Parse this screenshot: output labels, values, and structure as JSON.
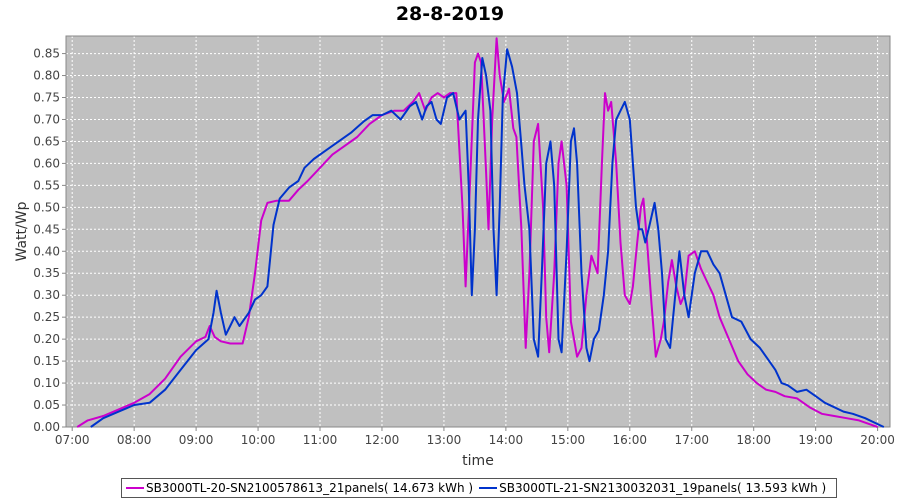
{
  "chart_data": {
    "type": "line",
    "title": "28-8-2019",
    "xlabel": "time",
    "ylabel": "Watt/Wp",
    "xlim": [
      6.9,
      20.2
    ],
    "ylim": [
      0,
      0.89
    ],
    "background": "#c0c0c0",
    "grid": true,
    "legend_position": "bottom",
    "x_ticks": [
      {
        "v": 7,
        "label": "07:00"
      },
      {
        "v": 8,
        "label": "08:00"
      },
      {
        "v": 9,
        "label": "09:00"
      },
      {
        "v": 10,
        "label": "10:00"
      },
      {
        "v": 11,
        "label": "11:00"
      },
      {
        "v": 12,
        "label": "12:00"
      },
      {
        "v": 13,
        "label": "13:00"
      },
      {
        "v": 14,
        "label": "14:00"
      },
      {
        "v": 15,
        "label": "15:00"
      },
      {
        "v": 16,
        "label": "16:00"
      },
      {
        "v": 17,
        "label": "17:00"
      },
      {
        "v": 18,
        "label": "18:00"
      },
      {
        "v": 19,
        "label": "19:00"
      },
      {
        "v": 20,
        "label": "20:00"
      }
    ],
    "y_ticks": [
      {
        "v": 0.0,
        "label": "0.00"
      },
      {
        "v": 0.05,
        "label": "0.05"
      },
      {
        "v": 0.1,
        "label": "0.10"
      },
      {
        "v": 0.15,
        "label": "0.15"
      },
      {
        "v": 0.2,
        "label": "0.20"
      },
      {
        "v": 0.25,
        "label": "0.25"
      },
      {
        "v": 0.3,
        "label": "0.30"
      },
      {
        "v": 0.35,
        "label": "0.35"
      },
      {
        "v": 0.4,
        "label": "0.40"
      },
      {
        "v": 0.45,
        "label": "0.45"
      },
      {
        "v": 0.5,
        "label": "0.50"
      },
      {
        "v": 0.55,
        "label": "0.55"
      },
      {
        "v": 0.6,
        "label": "0.60"
      },
      {
        "v": 0.65,
        "label": "0.65"
      },
      {
        "v": 0.7,
        "label": "0.70"
      },
      {
        "v": 0.75,
        "label": "0.75"
      },
      {
        "v": 0.8,
        "label": "0.80"
      },
      {
        "v": 0.85,
        "label": "0.85"
      }
    ],
    "series": [
      {
        "name": "SB3000TL-20-SN2100578613_21panels( 14.673 kWh )",
        "color": "#cc00cc",
        "points": [
          [
            7.08,
            0.0
          ],
          [
            7.25,
            0.015
          ],
          [
            7.5,
            0.025
          ],
          [
            7.75,
            0.04
          ],
          [
            8.0,
            0.055
          ],
          [
            8.25,
            0.075
          ],
          [
            8.5,
            0.11
          ],
          [
            8.75,
            0.16
          ],
          [
            9.0,
            0.195
          ],
          [
            9.15,
            0.205
          ],
          [
            9.22,
            0.23
          ],
          [
            9.3,
            0.205
          ],
          [
            9.4,
            0.195
          ],
          [
            9.55,
            0.19
          ],
          [
            9.75,
            0.19
          ],
          [
            9.85,
            0.25
          ],
          [
            9.95,
            0.35
          ],
          [
            10.05,
            0.47
          ],
          [
            10.15,
            0.51
          ],
          [
            10.3,
            0.515
          ],
          [
            10.5,
            0.515
          ],
          [
            10.65,
            0.54
          ],
          [
            10.8,
            0.56
          ],
          [
            11.0,
            0.59
          ],
          [
            11.2,
            0.62
          ],
          [
            11.4,
            0.64
          ],
          [
            11.6,
            0.66
          ],
          [
            11.8,
            0.69
          ],
          [
            12.0,
            0.71
          ],
          [
            12.2,
            0.72
          ],
          [
            12.35,
            0.72
          ],
          [
            12.5,
            0.74
          ],
          [
            12.6,
            0.76
          ],
          [
            12.7,
            0.72
          ],
          [
            12.8,
            0.75
          ],
          [
            12.9,
            0.76
          ],
          [
            13.0,
            0.75
          ],
          [
            13.1,
            0.76
          ],
          [
            13.2,
            0.76
          ],
          [
            13.3,
            0.5
          ],
          [
            13.35,
            0.32
          ],
          [
            13.42,
            0.55
          ],
          [
            13.5,
            0.83
          ],
          [
            13.55,
            0.85
          ],
          [
            13.6,
            0.83
          ],
          [
            13.68,
            0.58
          ],
          [
            13.72,
            0.45
          ],
          [
            13.78,
            0.7
          ],
          [
            13.85,
            0.885
          ],
          [
            13.9,
            0.8
          ],
          [
            13.97,
            0.74
          ],
          [
            14.05,
            0.77
          ],
          [
            14.12,
            0.68
          ],
          [
            14.17,
            0.66
          ],
          [
            14.25,
            0.45
          ],
          [
            14.32,
            0.18
          ],
          [
            14.38,
            0.35
          ],
          [
            14.45,
            0.65
          ],
          [
            14.52,
            0.69
          ],
          [
            14.6,
            0.5
          ],
          [
            14.65,
            0.25
          ],
          [
            14.7,
            0.17
          ],
          [
            14.78,
            0.35
          ],
          [
            14.85,
            0.6
          ],
          [
            14.9,
            0.65
          ],
          [
            14.98,
            0.55
          ],
          [
            15.05,
            0.24
          ],
          [
            15.15,
            0.16
          ],
          [
            15.22,
            0.18
          ],
          [
            15.3,
            0.3
          ],
          [
            15.38,
            0.39
          ],
          [
            15.48,
            0.35
          ],
          [
            15.55,
            0.6
          ],
          [
            15.6,
            0.76
          ],
          [
            15.65,
            0.72
          ],
          [
            15.7,
            0.74
          ],
          [
            15.78,
            0.6
          ],
          [
            15.85,
            0.42
          ],
          [
            15.92,
            0.3
          ],
          [
            16.0,
            0.28
          ],
          [
            16.05,
            0.32
          ],
          [
            16.12,
            0.42
          ],
          [
            16.18,
            0.5
          ],
          [
            16.22,
            0.52
          ],
          [
            16.28,
            0.42
          ],
          [
            16.35,
            0.28
          ],
          [
            16.42,
            0.16
          ],
          [
            16.5,
            0.2
          ],
          [
            16.55,
            0.24
          ],
          [
            16.62,
            0.33
          ],
          [
            16.68,
            0.38
          ],
          [
            16.75,
            0.32
          ],
          [
            16.82,
            0.28
          ],
          [
            16.88,
            0.3
          ],
          [
            16.95,
            0.39
          ],
          [
            17.05,
            0.4
          ],
          [
            17.15,
            0.36
          ],
          [
            17.25,
            0.33
          ],
          [
            17.35,
            0.3
          ],
          [
            17.45,
            0.25
          ],
          [
            17.6,
            0.2
          ],
          [
            17.75,
            0.15
          ],
          [
            17.9,
            0.12
          ],
          [
            18.05,
            0.1
          ],
          [
            18.2,
            0.085
          ],
          [
            18.35,
            0.08
          ],
          [
            18.5,
            0.07
          ],
          [
            18.7,
            0.065
          ],
          [
            18.9,
            0.045
          ],
          [
            19.1,
            0.03
          ],
          [
            19.3,
            0.025
          ],
          [
            19.5,
            0.02
          ],
          [
            19.7,
            0.015
          ],
          [
            19.9,
            0.005
          ],
          [
            20.0,
            0.0
          ]
        ]
      },
      {
        "name": "SB3000TL-21-SN2130032031_19panels( 13.593 kWh )",
        "color": "#0033cc",
        "points": [
          [
            7.3,
            0.0
          ],
          [
            7.5,
            0.02
          ],
          [
            7.75,
            0.035
          ],
          [
            8.0,
            0.05
          ],
          [
            8.25,
            0.055
          ],
          [
            8.5,
            0.085
          ],
          [
            8.75,
            0.13
          ],
          [
            9.0,
            0.175
          ],
          [
            9.2,
            0.2
          ],
          [
            9.28,
            0.26
          ],
          [
            9.33,
            0.31
          ],
          [
            9.4,
            0.26
          ],
          [
            9.48,
            0.21
          ],
          [
            9.55,
            0.23
          ],
          [
            9.62,
            0.25
          ],
          [
            9.7,
            0.23
          ],
          [
            9.85,
            0.26
          ],
          [
            9.95,
            0.29
          ],
          [
            10.05,
            0.3
          ],
          [
            10.15,
            0.32
          ],
          [
            10.25,
            0.46
          ],
          [
            10.35,
            0.52
          ],
          [
            10.5,
            0.545
          ],
          [
            10.65,
            0.56
          ],
          [
            10.75,
            0.59
          ],
          [
            10.9,
            0.61
          ],
          [
            11.1,
            0.63
          ],
          [
            11.3,
            0.65
          ],
          [
            11.5,
            0.67
          ],
          [
            11.7,
            0.695
          ],
          [
            11.85,
            0.71
          ],
          [
            12.0,
            0.71
          ],
          [
            12.15,
            0.72
          ],
          [
            12.3,
            0.7
          ],
          [
            12.45,
            0.73
          ],
          [
            12.55,
            0.74
          ],
          [
            12.65,
            0.7
          ],
          [
            12.72,
            0.73
          ],
          [
            12.8,
            0.74
          ],
          [
            12.88,
            0.7
          ],
          [
            12.95,
            0.69
          ],
          [
            13.05,
            0.75
          ],
          [
            13.15,
            0.76
          ],
          [
            13.25,
            0.7
          ],
          [
            13.35,
            0.72
          ],
          [
            13.4,
            0.55
          ],
          [
            13.45,
            0.3
          ],
          [
            13.5,
            0.45
          ],
          [
            13.55,
            0.7
          ],
          [
            13.62,
            0.84
          ],
          [
            13.68,
            0.8
          ],
          [
            13.75,
            0.72
          ],
          [
            13.8,
            0.45
          ],
          [
            13.85,
            0.3
          ],
          [
            13.9,
            0.5
          ],
          [
            13.95,
            0.75
          ],
          [
            14.02,
            0.86
          ],
          [
            14.1,
            0.82
          ],
          [
            14.18,
            0.76
          ],
          [
            14.25,
            0.64
          ],
          [
            14.3,
            0.55
          ],
          [
            14.38,
            0.45
          ],
          [
            14.45,
            0.2
          ],
          [
            14.52,
            0.16
          ],
          [
            14.58,
            0.35
          ],
          [
            14.65,
            0.6
          ],
          [
            14.72,
            0.65
          ],
          [
            14.78,
            0.55
          ],
          [
            14.85,
            0.2
          ],
          [
            14.9,
            0.17
          ],
          [
            14.98,
            0.4
          ],
          [
            15.05,
            0.65
          ],
          [
            15.1,
            0.68
          ],
          [
            15.15,
            0.6
          ],
          [
            15.22,
            0.35
          ],
          [
            15.3,
            0.18
          ],
          [
            15.35,
            0.15
          ],
          [
            15.42,
            0.2
          ],
          [
            15.5,
            0.22
          ],
          [
            15.58,
            0.3
          ],
          [
            15.65,
            0.4
          ],
          [
            15.72,
            0.6
          ],
          [
            15.78,
            0.7
          ],
          [
            15.85,
            0.72
          ],
          [
            15.92,
            0.74
          ],
          [
            16.0,
            0.7
          ],
          [
            16.05,
            0.6
          ],
          [
            16.1,
            0.5
          ],
          [
            16.15,
            0.45
          ],
          [
            16.2,
            0.45
          ],
          [
            16.25,
            0.42
          ],
          [
            16.32,
            0.46
          ],
          [
            16.4,
            0.51
          ],
          [
            16.46,
            0.45
          ],
          [
            16.52,
            0.35
          ],
          [
            16.58,
            0.2
          ],
          [
            16.65,
            0.18
          ],
          [
            16.72,
            0.28
          ],
          [
            16.8,
            0.4
          ],
          [
            16.88,
            0.3
          ],
          [
            16.95,
            0.25
          ],
          [
            17.05,
            0.35
          ],
          [
            17.15,
            0.4
          ],
          [
            17.25,
            0.4
          ],
          [
            17.35,
            0.37
          ],
          [
            17.45,
            0.35
          ],
          [
            17.55,
            0.3
          ],
          [
            17.65,
            0.25
          ],
          [
            17.8,
            0.24
          ],
          [
            17.95,
            0.2
          ],
          [
            18.1,
            0.18
          ],
          [
            18.25,
            0.15
          ],
          [
            18.35,
            0.13
          ],
          [
            18.45,
            0.1
          ],
          [
            18.55,
            0.095
          ],
          [
            18.7,
            0.08
          ],
          [
            18.85,
            0.085
          ],
          [
            19.0,
            0.07
          ],
          [
            19.15,
            0.055
          ],
          [
            19.3,
            0.045
          ],
          [
            19.45,
            0.035
          ],
          [
            19.6,
            0.03
          ],
          [
            19.8,
            0.02
          ],
          [
            19.95,
            0.01
          ],
          [
            20.1,
            0.0
          ]
        ]
      }
    ]
  }
}
